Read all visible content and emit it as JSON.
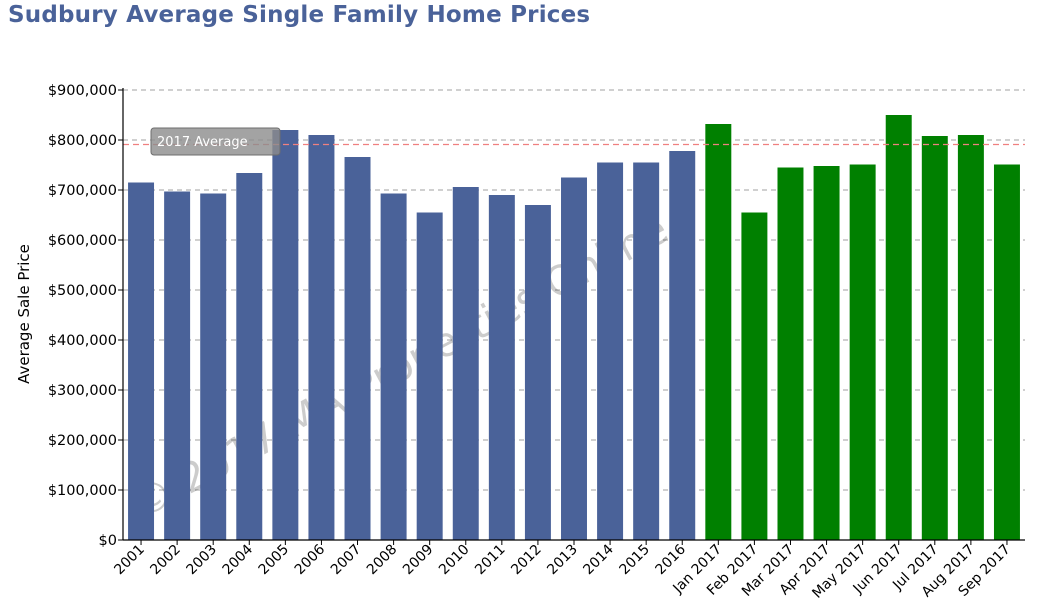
{
  "chart_data": {
    "type": "bar",
    "title": "Sudbury Average Single Family Home Prices",
    "ylabel": "Average Sale Price",
    "xlabel": "",
    "ylim": [
      0,
      900000
    ],
    "yticks": [
      "$0",
      "$100,000",
      "$200,000",
      "$300,000",
      "$400,000",
      "$500,000",
      "$600,000",
      "$700,000",
      "$800,000",
      "$900,000"
    ],
    "categories": [
      "2001",
      "2002",
      "2003",
      "2004",
      "2005",
      "2006",
      "2007",
      "2008",
      "2009",
      "2010",
      "2011",
      "2012",
      "2013",
      "2014",
      "2015",
      "2016",
      "Jan 2017",
      "Feb 2017",
      "Mar 2017",
      "Apr 2017",
      "May 2017",
      "Jun 2017",
      "Jul 2017",
      "Aug 2017",
      "Sep 2017"
    ],
    "series": [
      {
        "values": [
          715000,
          697000,
          693000,
          734000,
          820000,
          810000,
          766000,
          693000,
          655000,
          706000,
          690000,
          670000,
          725000,
          755000,
          755000,
          778000,
          832000,
          655000,
          745000,
          748000,
          751000,
          850000,
          808000,
          810000,
          751000
        ],
        "colors": [
          "#4a6299",
          "#4a6299",
          "#4a6299",
          "#4a6299",
          "#4a6299",
          "#4a6299",
          "#4a6299",
          "#4a6299",
          "#4a6299",
          "#4a6299",
          "#4a6299",
          "#4a6299",
          "#4a6299",
          "#4a6299",
          "#4a6299",
          "#4a6299",
          "#008000",
          "#008000",
          "#008000",
          "#008000",
          "#008000",
          "#008000",
          "#008000",
          "#008000",
          "#008000"
        ]
      }
    ],
    "reference_line": {
      "label": "2017 Average",
      "value": 791000,
      "color": "#f08080"
    },
    "watermark": "© 2017 MA Properties Online",
    "grid": true,
    "legend": "none"
  }
}
